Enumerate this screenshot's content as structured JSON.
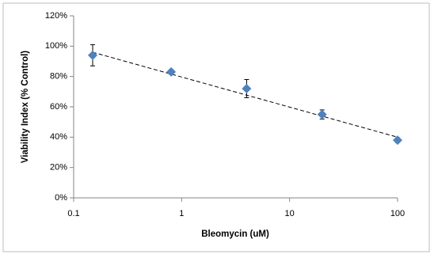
{
  "chart_data": {
    "type": "scatter",
    "y_label": "Viability Index (% Control)",
    "x_label": "Bleomycin (uM)",
    "log_x": true,
    "grid": false,
    "x": [
      0.15,
      0.8,
      4,
      20,
      100
    ],
    "series": [
      {
        "color": "#4f81bd",
        "values": [
          94,
          83,
          72,
          55,
          38
        ],
        "errors": [
          7,
          1.5,
          6,
          3,
          1.5
        ]
      }
    ],
    "trendline": {
      "x": [
        0.15,
        100
      ],
      "values": [
        96,
        40
      ],
      "color": "#000000"
    },
    "xlim": [
      0.1,
      100
    ],
    "xticks": [
      0.1,
      1,
      10,
      100
    ],
    "ylim": [
      0,
      120
    ],
    "yticks": [
      {
        "value": 0,
        "label": "0%"
      },
      {
        "value": 20,
        "label": "20%"
      },
      {
        "value": 40,
        "label": "40%"
      },
      {
        "value": 60,
        "label": "60%"
      },
      {
        "value": 80,
        "label": "80%"
      },
      {
        "value": 100,
        "label": "100%"
      },
      {
        "value": 120,
        "label": "120%"
      }
    ]
  }
}
